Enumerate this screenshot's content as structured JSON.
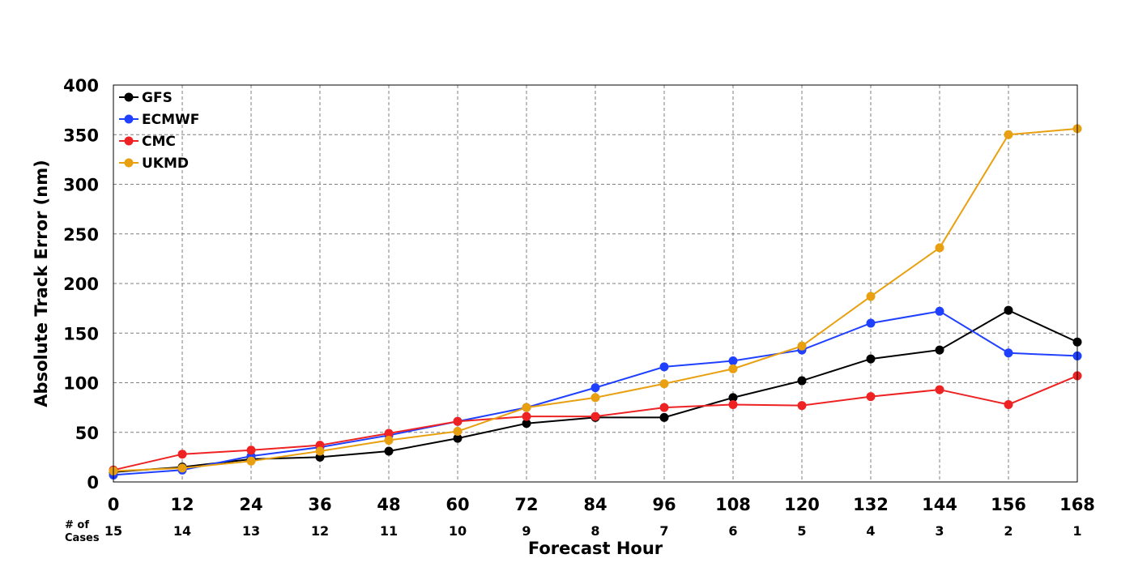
{
  "chart_data": {
    "type": "line",
    "xlabel": "Forecast Hour",
    "ylabel": "Absolute Track Error (nm)",
    "x": [
      0,
      12,
      24,
      36,
      48,
      60,
      72,
      84,
      96,
      108,
      120,
      132,
      144,
      156,
      168
    ],
    "xlim": [
      0,
      168
    ],
    "ylim": [
      0,
      400
    ],
    "yticks": [
      0,
      50,
      100,
      150,
      200,
      250,
      300,
      350,
      400
    ],
    "grid": true,
    "legend_position": "top-left",
    "cases_title_line1": "# of",
    "cases_title_line2": "Cases",
    "cases": [
      15,
      14,
      13,
      12,
      11,
      10,
      9,
      8,
      7,
      6,
      5,
      4,
      3,
      2,
      1
    ],
    "series": [
      {
        "name": "GFS",
        "color": "#000000",
        "values": [
          10,
          15,
          23,
          25,
          31,
          44,
          59,
          65,
          65,
          85,
          102,
          124,
          133,
          173,
          141
        ]
      },
      {
        "name": "ECMWF",
        "color": "#2040ff",
        "values": [
          7,
          12,
          26,
          35,
          47,
          61,
          75,
          95,
          116,
          122,
          133,
          160,
          172,
          130,
          127
        ]
      },
      {
        "name": "CMC",
        "color": "#ee2222",
        "values": [
          12,
          28,
          32,
          37,
          49,
          61,
          66,
          66,
          75,
          78,
          77,
          86,
          93,
          78,
          107
        ]
      },
      {
        "name": "UKMD",
        "color": "#e8a010",
        "values": [
          11,
          14,
          21,
          31,
          42,
          51,
          75,
          85,
          99,
          114,
          137,
          187,
          236,
          350,
          356
        ]
      }
    ]
  }
}
